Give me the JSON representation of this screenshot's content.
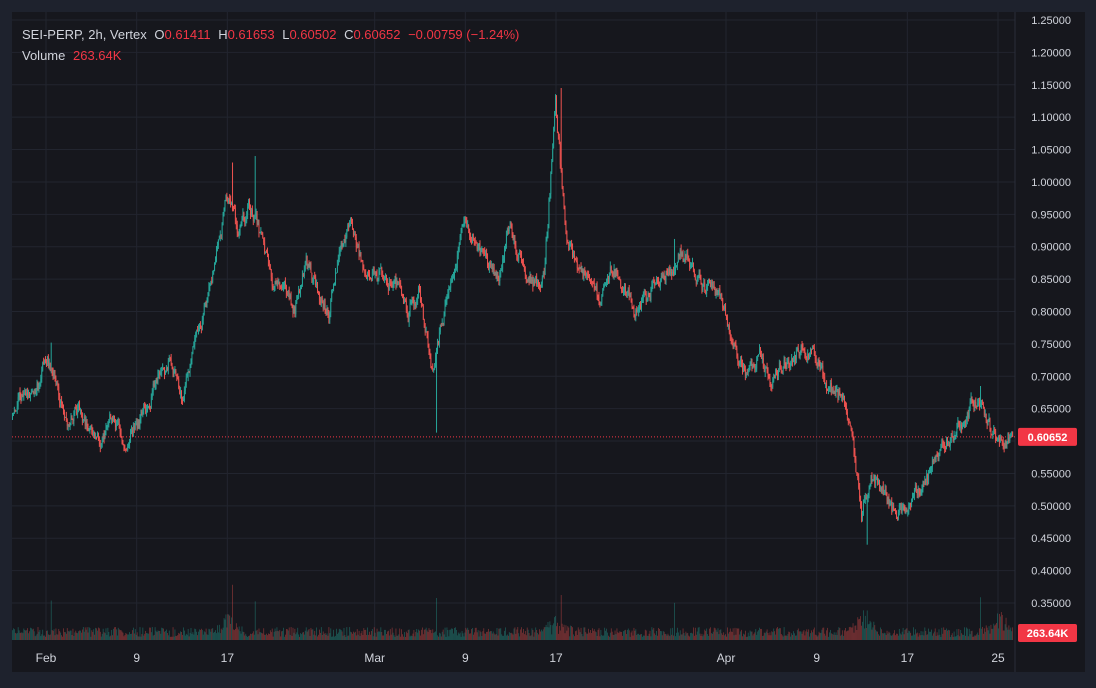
{
  "legend": {
    "symbol": "SEI-PERP, 2h, Vertex",
    "o_label": "O",
    "o_value": "0.61411",
    "h_label": "H",
    "h_value": "0.61653",
    "l_label": "L",
    "l_value": "0.60502",
    "c_label": "C",
    "c_value": "0.60652",
    "change": "−0.00759 (−1.24%)",
    "volume_label": "Volume",
    "volume_value": "263.64K"
  },
  "colors": {
    "background": "#16171d",
    "frame": "#1e222d",
    "up": "#26a69a",
    "down": "#ef5350",
    "text": "#d1d4dc",
    "price_tag": "#f23645"
  },
  "chart_data": {
    "type": "candlestick",
    "symbol": "SEI-PERP",
    "interval": "2h",
    "y_axis": {
      "ylim": [
        0.325,
        1.25
      ],
      "ticks": [
        "1.25000",
        "1.20000",
        "1.15000",
        "1.10000",
        "1.05000",
        "1.00000",
        "0.95000",
        "0.90000",
        "0.85000",
        "0.80000",
        "0.75000",
        "0.70000",
        "0.65000",
        "0.60000",
        "0.55000",
        "0.50000",
        "0.45000",
        "0.40000",
        "0.35000"
      ]
    },
    "x_axis": {
      "start_date": "2024-01-29",
      "end_date": "2024-04-26",
      "ticks": [
        {
          "date": "2024-02-01",
          "label": "Feb"
        },
        {
          "date": "2024-02-09",
          "label": "9"
        },
        {
          "date": "2024-02-17",
          "label": "17"
        },
        {
          "date": "2024-03-01",
          "label": "Mar"
        },
        {
          "date": "2024-03-09",
          "label": "9"
        },
        {
          "date": "2024-03-17",
          "label": "17"
        },
        {
          "date": "2024-04-01",
          "label": "Apr"
        },
        {
          "date": "2024-04-09",
          "label": "9"
        },
        {
          "date": "2024-04-17",
          "label": "17"
        },
        {
          "date": "2024-04-25",
          "label": "25"
        }
      ]
    },
    "last_price": 0.60652,
    "last_price_label": "0.60652",
    "last_volume_label": "263.64K",
    "price_path": [
      [
        "2024-01-29",
        0.64
      ],
      [
        "2024-01-30",
        0.68
      ],
      [
        "2024-01-31",
        0.66
      ],
      [
        "2024-02-01",
        0.735
      ],
      [
        "2024-02-02",
        0.68
      ],
      [
        "2024-02-03",
        0.63
      ],
      [
        "2024-02-04",
        0.645
      ],
      [
        "2024-02-05",
        0.61
      ],
      [
        "2024-02-06",
        0.605
      ],
      [
        "2024-02-07",
        0.64
      ],
      [
        "2024-02-08",
        0.6
      ],
      [
        "2024-02-09",
        0.615
      ],
      [
        "2024-02-10",
        0.655
      ],
      [
        "2024-02-11",
        0.7
      ],
      [
        "2024-02-12",
        0.72
      ],
      [
        "2024-02-13",
        0.67
      ],
      [
        "2024-02-14",
        0.735
      ],
      [
        "2024-02-15",
        0.8
      ],
      [
        "2024-02-16",
        0.875
      ],
      [
        "2024-02-17",
        0.98
      ],
      [
        "2024-02-18",
        0.925
      ],
      [
        "2024-02-19",
        0.96
      ],
      [
        "2024-02-20",
        0.92
      ],
      [
        "2024-02-21",
        0.85
      ],
      [
        "2024-02-22",
        0.84
      ],
      [
        "2024-02-23",
        0.8
      ],
      [
        "2024-02-24",
        0.88
      ],
      [
        "2024-02-25",
        0.83
      ],
      [
        "2024-02-26",
        0.8
      ],
      [
        "2024-02-27",
        0.9
      ],
      [
        "2024-02-28",
        0.93
      ],
      [
        "2024-02-29",
        0.87
      ],
      [
        "2024-03-01",
        0.86
      ],
      [
        "2024-03-02",
        0.85
      ],
      [
        "2024-03-03",
        0.84
      ],
      [
        "2024-03-04",
        0.8
      ],
      [
        "2024-03-05",
        0.835
      ],
      [
        "2024-03-06",
        0.71
      ],
      [
        "2024-03-07",
        0.78
      ],
      [
        "2024-03-08",
        0.86
      ],
      [
        "2024-03-09",
        0.94
      ],
      [
        "2024-03-10",
        0.9
      ],
      [
        "2024-03-11",
        0.87
      ],
      [
        "2024-03-12",
        0.85
      ],
      [
        "2024-03-13",
        0.93
      ],
      [
        "2024-03-14",
        0.88
      ],
      [
        "2024-03-15",
        0.84
      ],
      [
        "2024-03-16",
        0.86
      ],
      [
        "2024-03-17",
        1.12
      ],
      [
        "2024-03-18",
        0.9
      ],
      [
        "2024-03-19",
        0.87
      ],
      [
        "2024-03-20",
        0.86
      ],
      [
        "2024-03-21",
        0.82
      ],
      [
        "2024-03-22",
        0.87
      ],
      [
        "2024-03-23",
        0.84
      ],
      [
        "2024-03-24",
        0.8
      ],
      [
        "2024-03-25",
        0.82
      ],
      [
        "2024-03-26",
        0.84
      ],
      [
        "2024-03-27",
        0.86
      ],
      [
        "2024-03-28",
        0.89
      ],
      [
        "2024-03-29",
        0.87
      ],
      [
        "2024-03-30",
        0.84
      ],
      [
        "2024-03-31",
        0.835
      ],
      [
        "2024-04-01",
        0.8
      ],
      [
        "2024-04-02",
        0.73
      ],
      [
        "2024-04-03",
        0.7
      ],
      [
        "2024-04-04",
        0.73
      ],
      [
        "2024-04-05",
        0.7
      ],
      [
        "2024-04-06",
        0.715
      ],
      [
        "2024-04-07",
        0.73
      ],
      [
        "2024-04-08",
        0.745
      ],
      [
        "2024-04-09",
        0.73
      ],
      [
        "2024-04-10",
        0.68
      ],
      [
        "2024-04-11",
        0.67
      ],
      [
        "2024-04-12",
        0.64
      ],
      [
        "2024-04-13",
        0.49
      ],
      [
        "2024-04-14",
        0.55
      ],
      [
        "2024-04-15",
        0.52
      ],
      [
        "2024-04-16",
        0.485
      ],
      [
        "2024-04-17",
        0.505
      ],
      [
        "2024-04-18",
        0.52
      ],
      [
        "2024-04-19",
        0.55
      ],
      [
        "2024-04-20",
        0.59
      ],
      [
        "2024-04-21",
        0.61
      ],
      [
        "2024-04-22",
        0.63
      ],
      [
        "2024-04-23",
        0.665
      ],
      [
        "2024-04-24",
        0.64
      ],
      [
        "2024-04-25",
        0.6
      ],
      [
        "2024-04-26",
        0.6065
      ]
    ],
    "spikes": [
      {
        "date": "2024-02-01",
        "high": 0.752
      },
      {
        "date": "2024-02-17",
        "high": 1.03
      },
      {
        "date": "2024-02-19",
        "high": 1.04
      },
      {
        "date": "2024-03-06",
        "low": 0.613
      },
      {
        "date": "2024-03-17",
        "high": 1.145
      },
      {
        "date": "2024-03-27",
        "high": 0.912
      },
      {
        "date": "2024-04-13",
        "low": 0.44
      },
      {
        "date": "2024-04-23",
        "high": 0.685
      }
    ],
    "volume_high_dates": [
      "2024-02-17",
      "2024-03-17",
      "2024-04-13",
      "2024-04-25"
    ]
  }
}
